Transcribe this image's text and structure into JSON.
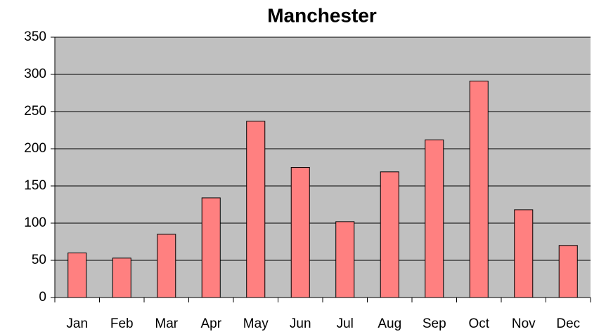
{
  "chart_data": {
    "type": "bar",
    "title": "Manchester",
    "categories": [
      "Jan",
      "Feb",
      "Mar",
      "Apr",
      "May",
      "Jun",
      "Jul",
      "Aug",
      "Sep",
      "Oct",
      "Nov",
      "Dec"
    ],
    "values": [
      60,
      53,
      85,
      134,
      237,
      175,
      102,
      169,
      212,
      291,
      118,
      70
    ],
    "color": "#ff8080",
    "plot_background": "#c0c0c0",
    "ylim": [
      0,
      350
    ],
    "yticks": [
      0,
      50,
      100,
      150,
      200,
      250,
      300,
      350
    ],
    "grid": true
  }
}
